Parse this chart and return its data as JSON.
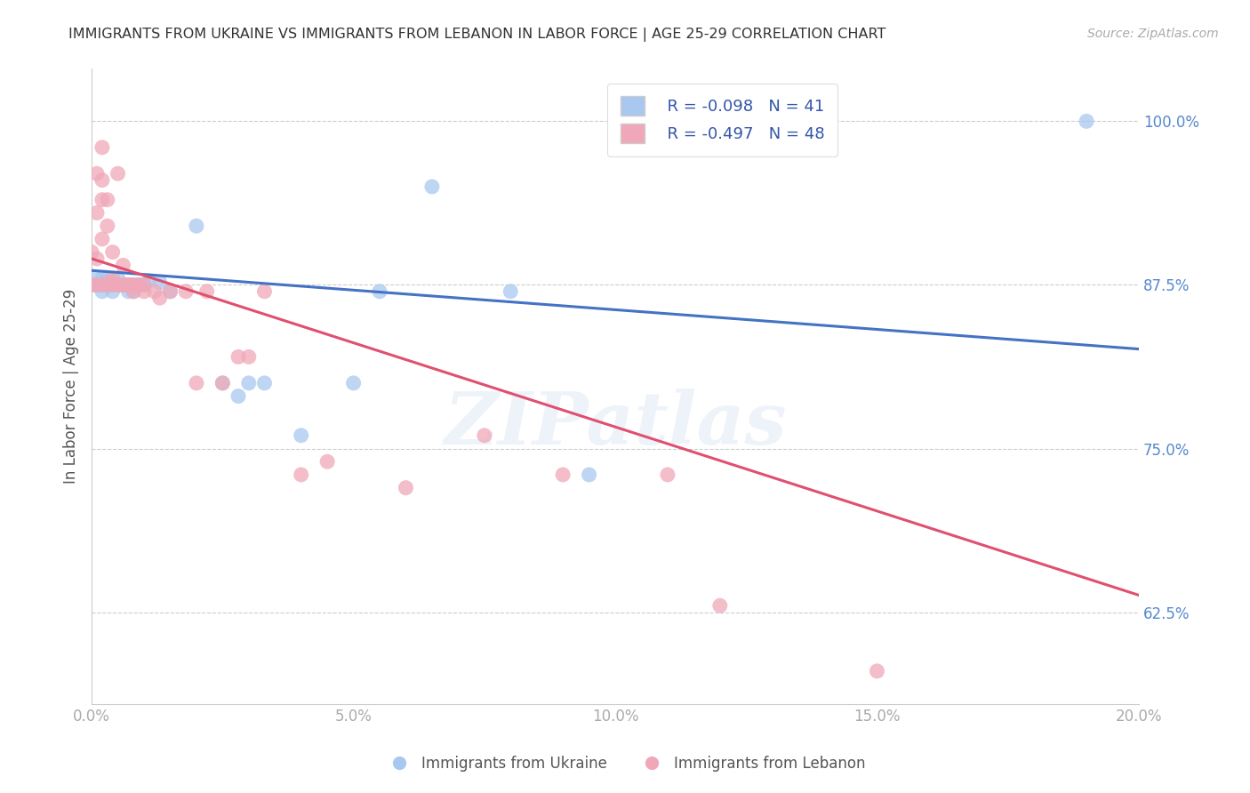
{
  "title": "IMMIGRANTS FROM UKRAINE VS IMMIGRANTS FROM LEBANON IN LABOR FORCE | AGE 25-29 CORRELATION CHART",
  "source": "Source: ZipAtlas.com",
  "ylabel": "In Labor Force | Age 25-29",
  "xlim": [
    0.0,
    0.2
  ],
  "ylim": [
    0.555,
    1.04
  ],
  "yticks": [
    0.625,
    0.75,
    0.875,
    1.0
  ],
  "ytick_labels": [
    "62.5%",
    "75.0%",
    "87.5%",
    "100.0%"
  ],
  "xticks": [
    0.0,
    0.05,
    0.1,
    0.15,
    0.2
  ],
  "xtick_labels": [
    "0.0%",
    "5.0%",
    "10.0%",
    "15.0%",
    "20.0%"
  ],
  "ukraine_color": "#a8c8f0",
  "lebanon_color": "#f0a8b8",
  "ukraine_line_color": "#4472c4",
  "lebanon_line_color": "#e05070",
  "ukraine_R": -0.098,
  "ukraine_N": 41,
  "lebanon_R": -0.497,
  "lebanon_N": 48,
  "legend_R_color": "#e05070",
  "legend_N_color": "#3355aa",
  "watermark": "ZIPatlas",
  "tick_color": "#5588cc",
  "ukraine_points_x": [
    0.0,
    0.0,
    0.001,
    0.001,
    0.001,
    0.002,
    0.002,
    0.002,
    0.002,
    0.003,
    0.003,
    0.003,
    0.004,
    0.004,
    0.004,
    0.005,
    0.005,
    0.005,
    0.006,
    0.006,
    0.007,
    0.007,
    0.008,
    0.008,
    0.009,
    0.01,
    0.011,
    0.013,
    0.015,
    0.02,
    0.025,
    0.028,
    0.03,
    0.033,
    0.04,
    0.05,
    0.055,
    0.065,
    0.08,
    0.095,
    0.19
  ],
  "ukraine_points_y": [
    0.875,
    0.875,
    0.875,
    0.875,
    0.88,
    0.875,
    0.875,
    0.88,
    0.87,
    0.875,
    0.875,
    0.88,
    0.875,
    0.87,
    0.875,
    0.875,
    0.875,
    0.88,
    0.875,
    0.875,
    0.875,
    0.87,
    0.875,
    0.87,
    0.875,
    0.875,
    0.878,
    0.877,
    0.87,
    0.92,
    0.8,
    0.79,
    0.8,
    0.8,
    0.76,
    0.8,
    0.87,
    0.95,
    0.87,
    0.73,
    1.0
  ],
  "lebanon_points_x": [
    0.0,
    0.0,
    0.001,
    0.001,
    0.001,
    0.001,
    0.002,
    0.002,
    0.002,
    0.002,
    0.002,
    0.003,
    0.003,
    0.003,
    0.003,
    0.004,
    0.004,
    0.004,
    0.005,
    0.005,
    0.005,
    0.006,
    0.006,
    0.007,
    0.007,
    0.008,
    0.008,
    0.009,
    0.01,
    0.01,
    0.012,
    0.013,
    0.015,
    0.018,
    0.02,
    0.022,
    0.025,
    0.028,
    0.03,
    0.033,
    0.04,
    0.045,
    0.06,
    0.075,
    0.09,
    0.11,
    0.12,
    0.15
  ],
  "lebanon_points_y": [
    0.875,
    0.9,
    0.875,
    0.895,
    0.93,
    0.96,
    0.875,
    0.91,
    0.94,
    0.955,
    0.98,
    0.875,
    0.92,
    0.94,
    0.875,
    0.875,
    0.9,
    0.88,
    0.875,
    0.96,
    0.875,
    0.875,
    0.89,
    0.875,
    0.875,
    0.875,
    0.87,
    0.875,
    0.875,
    0.87,
    0.87,
    0.865,
    0.87,
    0.87,
    0.8,
    0.87,
    0.8,
    0.82,
    0.82,
    0.87,
    0.73,
    0.74,
    0.72,
    0.76,
    0.73,
    0.73,
    0.63,
    0.58
  ]
}
